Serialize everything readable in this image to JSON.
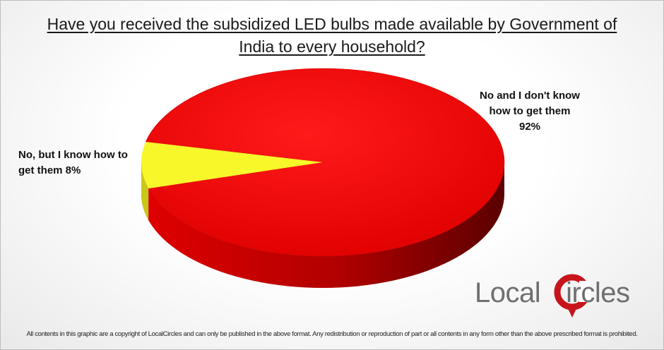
{
  "chart_data": {
    "type": "pie",
    "title": "Have you received the subsidized LED bulbs made available by Government of India to every household?",
    "slices": [
      {
        "label": "No and I don't know how to get them",
        "value": 92,
        "value_label": "92%",
        "color": "#e50000"
      },
      {
        "label": "No, but I know how to get them",
        "value": 8,
        "value_label": "8%",
        "color": "#f7f72a"
      }
    ],
    "style": "3d"
  },
  "labels": {
    "no_dont_know_line1": "No and I don't know",
    "no_dont_know_line2": "how to get them",
    "no_dont_know_pct": "92%",
    "no_know_line1": "No, but I know how to",
    "no_know_line2": "get them 8%"
  },
  "logo": {
    "part1": "Local",
    "part2": "ircles",
    "accent": "#c8141b"
  },
  "footer": "All contents in this graphic are a copyright of LocalCircles and can only be published in the above format. Any redistribution or reproduction of part or all contents in any form other than the above prescribed format is prohibited."
}
